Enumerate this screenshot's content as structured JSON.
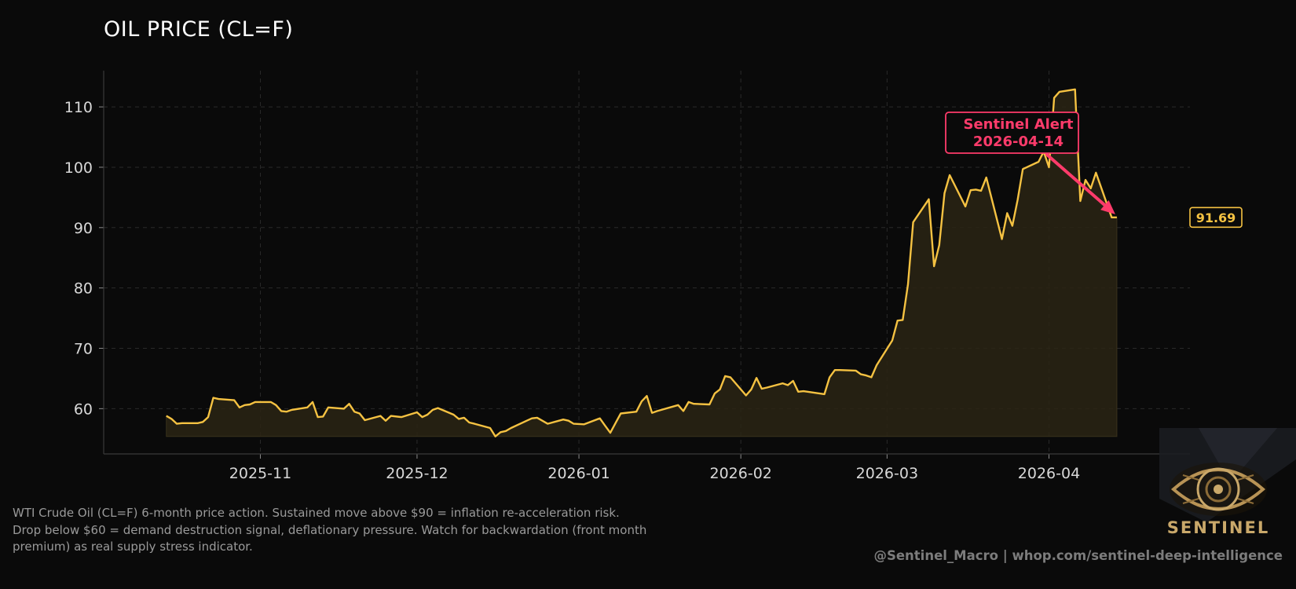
{
  "title": "OIL PRICE (CL=F)",
  "caption_lines": [
    "WTI Crude Oil (CL=F) 6-month price action. Sustained move above $90 = inflation re-acceleration risk.",
    "Drop below $60 = demand destruction signal, deflationary pressure. Watch for backwardation (front month",
    "premium) as real supply stress indicator."
  ],
  "footer": "@Sentinel_Macro  |  whop.com/sentinel-deep-intelligence",
  "logo_text": "SENTINEL",
  "colors": {
    "background": "#0a0a0a",
    "line": "#f5c242",
    "fill": "#2a2414",
    "alert": "#ff3b6b",
    "grid": "#2a2a2a",
    "axis_text": "#d8d8d8"
  },
  "chart_data": {
    "type": "area",
    "title": "OIL PRICE (CL=F)",
    "xlabel": "",
    "ylabel": "",
    "ylim": [
      52.5,
      116
    ],
    "xlim": [
      "2025-10-02",
      "2026-04-28"
    ],
    "grid": true,
    "x_ticks": [
      "2025-11",
      "2025-12",
      "2026-01",
      "2026-02",
      "2026-03",
      "2026-04"
    ],
    "y_ticks": [
      60,
      70,
      80,
      90,
      100,
      110
    ],
    "last_value_label": "91.69",
    "annotations": [
      {
        "text_line1": "Sentinel Alert",
        "text_line2": "2026-04-14",
        "target_x": "2026-04-14",
        "target_y": 92.2
      }
    ],
    "series": [
      {
        "x": [
          "2025-10-14",
          "2025-10-15",
          "2025-10-16",
          "2025-10-17",
          "2025-10-20",
          "2025-10-21",
          "2025-10-22",
          "2025-10-23",
          "2025-10-24",
          "2025-10-27",
          "2025-10-28",
          "2025-10-29",
          "2025-10-30",
          "2025-10-31",
          "2025-11-03",
          "2025-11-04",
          "2025-11-05",
          "2025-11-06",
          "2025-11-07",
          "2025-11-10",
          "2025-11-11",
          "2025-11-12",
          "2025-11-13",
          "2025-11-14",
          "2025-11-17",
          "2025-11-18",
          "2025-11-19",
          "2025-11-20",
          "2025-11-21",
          "2025-11-24",
          "2025-11-25",
          "2025-11-26",
          "2025-11-28",
          "2025-12-01",
          "2025-12-02",
          "2025-12-03",
          "2025-12-04",
          "2025-12-05",
          "2025-12-08",
          "2025-12-09",
          "2025-12-10",
          "2025-12-11",
          "2025-12-12",
          "2025-12-15",
          "2025-12-16",
          "2025-12-17",
          "2025-12-18",
          "2025-12-19",
          "2025-12-22",
          "2025-12-23",
          "2025-12-24",
          "2025-12-26",
          "2025-12-29",
          "2025-12-30",
          "2025-12-31",
          "2026-01-02",
          "2026-01-05",
          "2026-01-06",
          "2026-01-07",
          "2026-01-08",
          "2026-01-09",
          "2026-01-12",
          "2026-01-13",
          "2026-01-14",
          "2026-01-15",
          "2026-01-16",
          "2026-01-20",
          "2026-01-21",
          "2026-01-22",
          "2026-01-23",
          "2026-01-26",
          "2026-01-27",
          "2026-01-28",
          "2026-01-29",
          "2026-01-30",
          "2026-02-02",
          "2026-02-03",
          "2026-02-04",
          "2026-02-05",
          "2026-02-06",
          "2026-02-09",
          "2026-02-10",
          "2026-02-11",
          "2026-02-12",
          "2026-02-13",
          "2026-02-17",
          "2026-02-18",
          "2026-02-19",
          "2026-02-20",
          "2026-02-23",
          "2026-02-24",
          "2026-02-25",
          "2026-02-26",
          "2026-02-27",
          "2026-03-02",
          "2026-03-03",
          "2026-03-04",
          "2026-03-05",
          "2026-03-06",
          "2026-03-09",
          "2026-03-10",
          "2026-03-11",
          "2026-03-12",
          "2026-03-13",
          "2026-03-16",
          "2026-03-17",
          "2026-03-18",
          "2026-03-19",
          "2026-03-20",
          "2026-03-23",
          "2026-03-24",
          "2026-03-25",
          "2026-03-26",
          "2026-03-27",
          "2026-03-30",
          "2026-03-31",
          "2026-04-01",
          "2026-04-02",
          "2026-04-03",
          "2026-04-06",
          "2026-04-07",
          "2026-04-08",
          "2026-04-09",
          "2026-04-10",
          "2026-04-13",
          "2026-04-14"
        ],
        "values": [
          58.8,
          58.3,
          57.5,
          57.6,
          57.6,
          57.8,
          58.6,
          61.8,
          61.6,
          61.4,
          60.2,
          60.6,
          60.7,
          61.1,
          61.1,
          60.6,
          59.6,
          59.5,
          59.8,
          60.2,
          61.1,
          58.6,
          58.7,
          60.2,
          60.0,
          60.8,
          59.5,
          59.2,
          58.1,
          58.8,
          58.0,
          58.8,
          58.6,
          59.4,
          58.6,
          59.0,
          59.8,
          60.1,
          59.0,
          58.3,
          58.5,
          57.7,
          57.5,
          56.8,
          55.4,
          56.1,
          56.3,
          56.8,
          58.0,
          58.4,
          58.5,
          57.5,
          58.2,
          58.0,
          57.5,
          57.4,
          58.4,
          57.2,
          56.0,
          57.6,
          59.2,
          59.5,
          61.2,
          62.1,
          59.3,
          59.6,
          60.6,
          59.6,
          61.1,
          60.8,
          60.7,
          62.5,
          63.2,
          65.4,
          65.2,
          62.2,
          63.2,
          65.1,
          63.3,
          63.5,
          64.2,
          63.9,
          64.6,
          62.8,
          62.9,
          62.4,
          65.2,
          66.4,
          66.4,
          66.3,
          65.7,
          65.5,
          65.2,
          67.2,
          71.3,
          74.6,
          74.7,
          80.6,
          90.9,
          94.7,
          83.6,
          87.1,
          95.7,
          98.7,
          93.5,
          96.2,
          96.3,
          96.1,
          98.3,
          88.1,
          92.4,
          90.3,
          94.6,
          99.7,
          100.9,
          102.6,
          100.0,
          111.5,
          112.5,
          112.9,
          94.4,
          97.9,
          96.5,
          99.1,
          91.69,
          91.69
        ]
      }
    ]
  }
}
